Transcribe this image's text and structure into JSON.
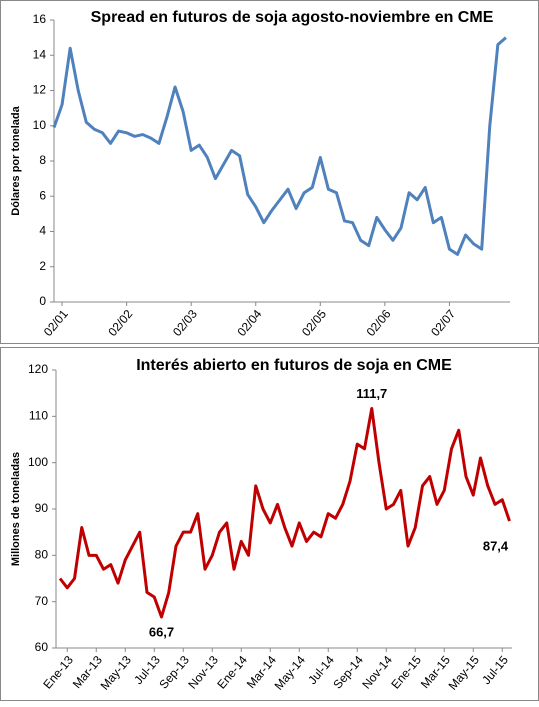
{
  "chart_data": [
    {
      "type": "line",
      "title": "Spread en futuros de soja agosto-noviembre en CME",
      "y_label": "Dólares por tonelada",
      "categories": [
        null,
        "02/01",
        null,
        null,
        null,
        null,
        null,
        null,
        null,
        "02/02",
        null,
        null,
        null,
        null,
        null,
        null,
        null,
        "02/03",
        null,
        null,
        null,
        null,
        null,
        null,
        null,
        "02/04",
        null,
        null,
        null,
        null,
        null,
        null,
        null,
        "02/05",
        null,
        null,
        null,
        null,
        null,
        null,
        null,
        "02/06",
        null,
        null,
        null,
        null,
        null,
        null,
        null,
        "02/07",
        null,
        null,
        null,
        null,
        null,
        null,
        null
      ],
      "series": [
        {
          "name": "Spread",
          "color": "#4f81bd",
          "values": [
            9.9,
            11.2,
            14.4,
            12,
            10.2,
            9.8,
            9.6,
            9.0,
            9.7,
            9.6,
            9.4,
            9.5,
            9.3,
            9.0,
            10.5,
            12.2,
            10.8,
            8.6,
            8.9,
            8.2,
            7.0,
            7.8,
            8.6,
            8.3,
            6.1,
            5.4,
            4.5,
            5.2,
            5.8,
            6.4,
            5.3,
            6.2,
            6.5,
            8.2,
            6.4,
            6.2,
            4.6,
            4.5,
            3.5,
            3.2,
            4.8,
            4.1,
            3.5,
            4.2,
            6.2,
            5.8,
            6.5,
            4.5,
            4.8,
            3.0,
            2.7,
            3.8,
            3.3,
            3.0,
            10.0,
            14.6,
            15.0
          ]
        }
      ],
      "ylim": [
        0,
        16
      ],
      "yticks": [
        0,
        2,
        4,
        6,
        8,
        10,
        12,
        14,
        16
      ]
    },
    {
      "type": "line",
      "title": "Interés abierto en futuros de soja en CME",
      "y_label": "Millones de toneladas",
      "categories": [
        null,
        "Ene-13",
        null,
        null,
        null,
        "Mar-13",
        null,
        null,
        null,
        "May-13",
        null,
        null,
        null,
        "Jul-13",
        null,
        null,
        null,
        "Sep-13",
        null,
        null,
        null,
        "Nov-13",
        null,
        null,
        null,
        "Ene-14",
        null,
        null,
        null,
        "Mar-14",
        null,
        null,
        null,
        "May-14",
        null,
        null,
        null,
        "Jul-14",
        null,
        null,
        null,
        "Sep-14",
        null,
        null,
        null,
        "Nov-14",
        null,
        null,
        null,
        "Ene-15",
        null,
        null,
        null,
        "Mar-15",
        null,
        null,
        null,
        "May-15",
        null,
        null,
        null,
        "Jul-15",
        null
      ],
      "series": [
        {
          "name": "Interés abierto",
          "color": "#c00000",
          "values": [
            75,
            73,
            75,
            86,
            80,
            80,
            77,
            78,
            74,
            79,
            82,
            85,
            72,
            71,
            66.7,
            72,
            82,
            85,
            85,
            89,
            77,
            80,
            85,
            87,
            77,
            83,
            80,
            95,
            90,
            87,
            91,
            86,
            82,
            87,
            83,
            85,
            84,
            89,
            88,
            91,
            96,
            104,
            103,
            111.7,
            100,
            90,
            91,
            94,
            82,
            86,
            95,
            97,
            91,
            94,
            103,
            107,
            97,
            93,
            101,
            95,
            91,
            92,
            87.4
          ],
          "value_labels": [
            null,
            null,
            null,
            null,
            null,
            null,
            null,
            null,
            null,
            null,
            null,
            null,
            null,
            null,
            "66,7",
            null,
            null,
            null,
            null,
            null,
            null,
            null,
            null,
            null,
            null,
            null,
            null,
            null,
            null,
            null,
            null,
            null,
            null,
            null,
            null,
            null,
            null,
            null,
            null,
            null,
            null,
            null,
            null,
            "111,7",
            null,
            null,
            null,
            null,
            null,
            null,
            null,
            null,
            null,
            null,
            null,
            null,
            null,
            null,
            null,
            null,
            null,
            null,
            "87,4"
          ]
        }
      ],
      "ylim": [
        60,
        120
      ],
      "yticks": [
        60,
        70,
        80,
        90,
        100,
        110,
        120
      ]
    }
  ]
}
